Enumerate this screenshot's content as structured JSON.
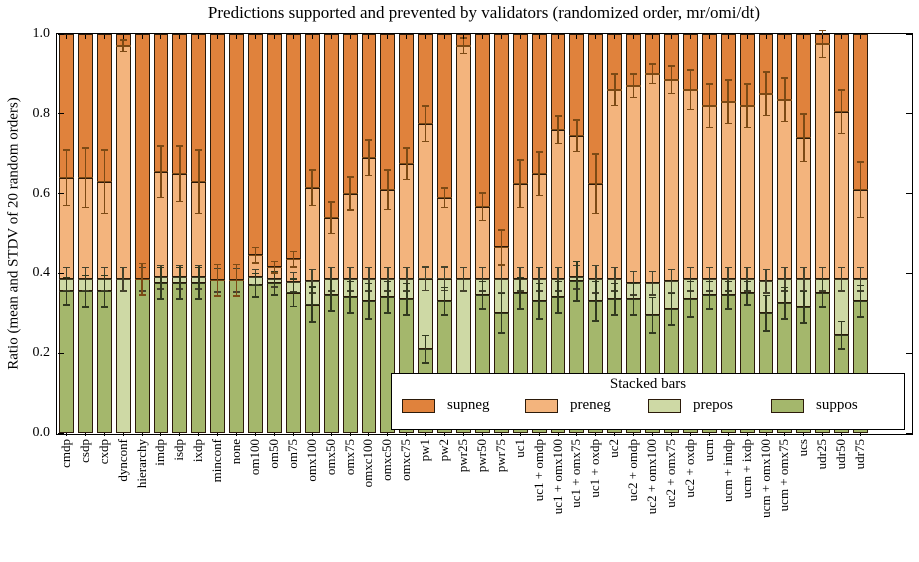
{
  "chart_data": {
    "type": "bar",
    "variant": "stacked-vertical-with-error-bars",
    "title": "Predictions supported and prevented by validators (randomized order, mr/omi/dt)",
    "ylabel": "Ratio (mean and STDV of 20 random orders)",
    "xlabel": "",
    "ylim": [
      0.0,
      1.0
    ],
    "yticks": [
      "0.0",
      "0.2",
      "0.4",
      "0.6",
      "0.8",
      "1.0"
    ],
    "grid": "off",
    "stacking_order_bottom_to_top": [
      "suppos",
      "prepos",
      "preneg",
      "supneg"
    ],
    "colors": {
      "supneg": "#e0823c",
      "preneg": "#f3b47d",
      "prepos": "#ced9a5",
      "suppos": "#a4b76c",
      "bar_edge": "#2b1a0a",
      "err_preneg": "#7c4a15",
      "err_prepos": "#44422c",
      "err_suppos": "#31391f"
    },
    "legend": {
      "title": "Stacked bars",
      "position": "lower right inside axes",
      "entries": [
        {
          "label": "supneg",
          "color": "#e0823c"
        },
        {
          "label": "preneg",
          "color": "#f3b47d"
        },
        {
          "label": "prepos",
          "color": "#ced9a5"
        },
        {
          "label": "suppos",
          "color": "#a4b76c"
        }
      ]
    },
    "bars": [
      {
        "label": "cmdp",
        "suppos_top": 0.355,
        "prepos_top": 0.385,
        "preneg_top": 0.64,
        "supneg_top": 1.0,
        "err_preneg": 0.07,
        "err_prepos": 0.03,
        "err_suppos": 0.035
      },
      {
        "label": "csdp",
        "suppos_top": 0.355,
        "prepos_top": 0.385,
        "preneg_top": 0.64,
        "supneg_top": 1.0,
        "err_preneg": 0.075,
        "err_prepos": 0.03,
        "err_suppos": 0.04
      },
      {
        "label": "cxdp",
        "suppos_top": 0.355,
        "prepos_top": 0.385,
        "preneg_top": 0.63,
        "supneg_top": 1.0,
        "err_preneg": 0.08,
        "err_prepos": 0.03,
        "err_suppos": 0.04
      },
      {
        "label": "dynconf",
        "suppos_top": 0.0,
        "prepos_top": 0.385,
        "preneg_top": 0.97,
        "supneg_top": 1.0,
        "err_preneg": 0.015,
        "err_prepos": 0.03,
        "err_suppos": 0.0
      },
      {
        "label": "hierarchy",
        "suppos_top": 0.385,
        "prepos_top": 0.385,
        "preneg_top": 0.385,
        "supneg_top": 1.0,
        "err_preneg": 0.04,
        "err_prepos": 0.03,
        "err_suppos": 0.04
      },
      {
        "label": "imdp",
        "suppos_top": 0.375,
        "prepos_top": 0.39,
        "preneg_top": 0.655,
        "supneg_top": 1.0,
        "err_preneg": 0.065,
        "err_prepos": 0.03,
        "err_suppos": 0.04
      },
      {
        "label": "isdp",
        "suppos_top": 0.375,
        "prepos_top": 0.39,
        "preneg_top": 0.65,
        "supneg_top": 1.0,
        "err_preneg": 0.07,
        "err_prepos": 0.03,
        "err_suppos": 0.04
      },
      {
        "label": "ixdp",
        "suppos_top": 0.375,
        "prepos_top": 0.39,
        "preneg_top": 0.63,
        "supneg_top": 1.0,
        "err_preneg": 0.08,
        "err_prepos": 0.03,
        "err_suppos": 0.04
      },
      {
        "label": "minconf",
        "suppos_top": 0.383,
        "prepos_top": 0.383,
        "preneg_top": 0.383,
        "supneg_top": 1.0,
        "err_preneg": 0.04,
        "err_prepos": 0.03,
        "err_suppos": 0.04
      },
      {
        "label": "none",
        "suppos_top": 0.383,
        "prepos_top": 0.383,
        "preneg_top": 0.383,
        "supneg_top": 1.0,
        "err_preneg": 0.04,
        "err_prepos": 0.03,
        "err_suppos": 0.04
      },
      {
        "label": "om100",
        "suppos_top": 0.37,
        "prepos_top": 0.39,
        "preneg_top": 0.445,
        "supneg_top": 1.0,
        "err_preneg": 0.02,
        "err_prepos": 0.02,
        "err_suppos": 0.03
      },
      {
        "label": "om50",
        "suppos_top": 0.375,
        "prepos_top": 0.385,
        "preneg_top": 0.415,
        "supneg_top": 1.0,
        "err_preneg": 0.015,
        "err_prepos": 0.02,
        "err_suppos": 0.03
      },
      {
        "label": "om75",
        "suppos_top": 0.352,
        "prepos_top": 0.378,
        "preneg_top": 0.435,
        "supneg_top": 1.0,
        "err_preneg": 0.02,
        "err_prepos": 0.025,
        "err_suppos": 0.035
      },
      {
        "label": "omx100",
        "suppos_top": 0.322,
        "prepos_top": 0.38,
        "preneg_top": 0.615,
        "supneg_top": 1.0,
        "err_preneg": 0.045,
        "err_prepos": 0.03,
        "err_suppos": 0.045
      },
      {
        "label": "omx50",
        "suppos_top": 0.345,
        "prepos_top": 0.385,
        "preneg_top": 0.54,
        "supneg_top": 1.0,
        "err_preneg": 0.04,
        "err_prepos": 0.03,
        "err_suppos": 0.04
      },
      {
        "label": "omx75",
        "suppos_top": 0.34,
        "prepos_top": 0.385,
        "preneg_top": 0.6,
        "supneg_top": 1.0,
        "err_preneg": 0.042,
        "err_prepos": 0.03,
        "err_suppos": 0.04
      },
      {
        "label": "omxc100",
        "suppos_top": 0.33,
        "prepos_top": 0.385,
        "preneg_top": 0.69,
        "supneg_top": 1.0,
        "err_preneg": 0.045,
        "err_prepos": 0.03,
        "err_suppos": 0.045
      },
      {
        "label": "omxc50",
        "suppos_top": 0.34,
        "prepos_top": 0.385,
        "preneg_top": 0.61,
        "supneg_top": 1.0,
        "err_preneg": 0.05,
        "err_prepos": 0.03,
        "err_suppos": 0.04
      },
      {
        "label": "omxc75",
        "suppos_top": 0.335,
        "prepos_top": 0.385,
        "preneg_top": 0.675,
        "supneg_top": 1.0,
        "err_preneg": 0.04,
        "err_prepos": 0.03,
        "err_suppos": 0.04
      },
      {
        "label": "pw1",
        "suppos_top": 0.21,
        "prepos_top": 0.387,
        "preneg_top": 0.775,
        "supneg_top": 1.0,
        "err_preneg": 0.045,
        "err_prepos": 0.03,
        "err_suppos": 0.035
      },
      {
        "label": "pw2",
        "suppos_top": 0.33,
        "prepos_top": 0.387,
        "preneg_top": 0.59,
        "supneg_top": 1.0,
        "err_preneg": 0.025,
        "err_prepos": 0.03,
        "err_suppos": 0.035
      },
      {
        "label": "pwr25",
        "suppos_top": 0.12,
        "prepos_top": 0.385,
        "preneg_top": 0.97,
        "supneg_top": 1.0,
        "err_preneg": 0.02,
        "err_prepos": 0.03,
        "err_suppos": 0.03
      },
      {
        "label": "pwr50",
        "suppos_top": 0.345,
        "prepos_top": 0.385,
        "preneg_top": 0.567,
        "supneg_top": 1.0,
        "err_preneg": 0.035,
        "err_prepos": 0.03,
        "err_suppos": 0.035
      },
      {
        "label": "pwr75",
        "suppos_top": 0.3,
        "prepos_top": 0.385,
        "preneg_top": 0.465,
        "supneg_top": 1.0,
        "err_preneg": 0.045,
        "err_prepos": 0.035,
        "err_suppos": 0.05
      },
      {
        "label": "uc1",
        "suppos_top": 0.35,
        "prepos_top": 0.385,
        "preneg_top": 0.625,
        "supneg_top": 1.0,
        "err_preneg": 0.06,
        "err_prepos": 0.03,
        "err_suppos": 0.04
      },
      {
        "label": "uc1 + omdp",
        "suppos_top": 0.33,
        "prepos_top": 0.385,
        "preneg_top": 0.65,
        "supneg_top": 1.0,
        "err_preneg": 0.055,
        "err_prepos": 0.03,
        "err_suppos": 0.045
      },
      {
        "label": "uc1 + omx100",
        "suppos_top": 0.34,
        "prepos_top": 0.385,
        "preneg_top": 0.76,
        "supneg_top": 1.0,
        "err_preneg": 0.035,
        "err_prepos": 0.03,
        "err_suppos": 0.04
      },
      {
        "label": "uc1 + omx75",
        "suppos_top": 0.38,
        "prepos_top": 0.39,
        "preneg_top": 0.745,
        "supneg_top": 1.0,
        "err_preneg": 0.04,
        "err_prepos": 0.03,
        "err_suppos": 0.05
      },
      {
        "label": "uc1 + oxdp",
        "suppos_top": 0.33,
        "prepos_top": 0.385,
        "preneg_top": 0.625,
        "supneg_top": 1.0,
        "err_preneg": 0.075,
        "err_prepos": 0.035,
        "err_suppos": 0.05
      },
      {
        "label": "uc2",
        "suppos_top": 0.335,
        "prepos_top": 0.385,
        "preneg_top": 0.86,
        "supneg_top": 1.0,
        "err_preneg": 0.04,
        "err_prepos": 0.03,
        "err_suppos": 0.04
      },
      {
        "label": "uc2 + omdp",
        "suppos_top": 0.335,
        "prepos_top": 0.375,
        "preneg_top": 0.87,
        "supneg_top": 1.0,
        "err_preneg": 0.03,
        "err_prepos": 0.03,
        "err_suppos": 0.04
      },
      {
        "label": "uc2 + omx100",
        "suppos_top": 0.295,
        "prepos_top": 0.375,
        "preneg_top": 0.9,
        "supneg_top": 1.0,
        "err_preneg": 0.025,
        "err_prepos": 0.03,
        "err_suppos": 0.045
      },
      {
        "label": "uc2 + omx75",
        "suppos_top": 0.31,
        "prepos_top": 0.38,
        "preneg_top": 0.885,
        "supneg_top": 1.0,
        "err_preneg": 0.035,
        "err_prepos": 0.03,
        "err_suppos": 0.04
      },
      {
        "label": "uc2 + oxdp",
        "suppos_top": 0.335,
        "prepos_top": 0.385,
        "preneg_top": 0.86,
        "supneg_top": 1.0,
        "err_preneg": 0.05,
        "err_prepos": 0.03,
        "err_suppos": 0.045
      },
      {
        "label": "ucm",
        "suppos_top": 0.345,
        "prepos_top": 0.385,
        "preneg_top": 0.82,
        "supneg_top": 1.0,
        "err_preneg": 0.055,
        "err_prepos": 0.03,
        "err_suppos": 0.035
      },
      {
        "label": "ucm + imdp",
        "suppos_top": 0.345,
        "prepos_top": 0.385,
        "preneg_top": 0.83,
        "supneg_top": 1.0,
        "err_preneg": 0.055,
        "err_prepos": 0.03,
        "err_suppos": 0.035
      },
      {
        "label": "ucm + ixdp",
        "suppos_top": 0.35,
        "prepos_top": 0.385,
        "preneg_top": 0.82,
        "supneg_top": 1.0,
        "err_preneg": 0.055,
        "err_prepos": 0.03,
        "err_suppos": 0.03
      },
      {
        "label": "ucm + omx100",
        "suppos_top": 0.3,
        "prepos_top": 0.38,
        "preneg_top": 0.85,
        "supneg_top": 1.0,
        "err_preneg": 0.055,
        "err_prepos": 0.03,
        "err_suppos": 0.045
      },
      {
        "label": "ucm + omx75",
        "suppos_top": 0.325,
        "prepos_top": 0.385,
        "preneg_top": 0.835,
        "supneg_top": 1.0,
        "err_preneg": 0.055,
        "err_prepos": 0.03,
        "err_suppos": 0.04
      },
      {
        "label": "ucs",
        "suppos_top": 0.315,
        "prepos_top": 0.385,
        "preneg_top": 0.74,
        "supneg_top": 1.0,
        "err_preneg": 0.06,
        "err_prepos": 0.03,
        "err_suppos": 0.04
      },
      {
        "label": "udr25",
        "suppos_top": 0.35,
        "prepos_top": 0.385,
        "preneg_top": 0.975,
        "supneg_top": 1.0,
        "err_preneg": 0.035,
        "err_prepos": 0.03,
        "err_suppos": 0.035
      },
      {
        "label": "udr50",
        "suppos_top": 0.245,
        "prepos_top": 0.385,
        "preneg_top": 0.805,
        "supneg_top": 1.0,
        "err_preneg": 0.055,
        "err_prepos": 0.03,
        "err_suppos": 0.035
      },
      {
        "label": "udr75",
        "suppos_top": 0.33,
        "prepos_top": 0.385,
        "preneg_top": 0.61,
        "supneg_top": 1.0,
        "err_preneg": 0.07,
        "err_prepos": 0.03,
        "err_suppos": 0.04
      }
    ]
  }
}
